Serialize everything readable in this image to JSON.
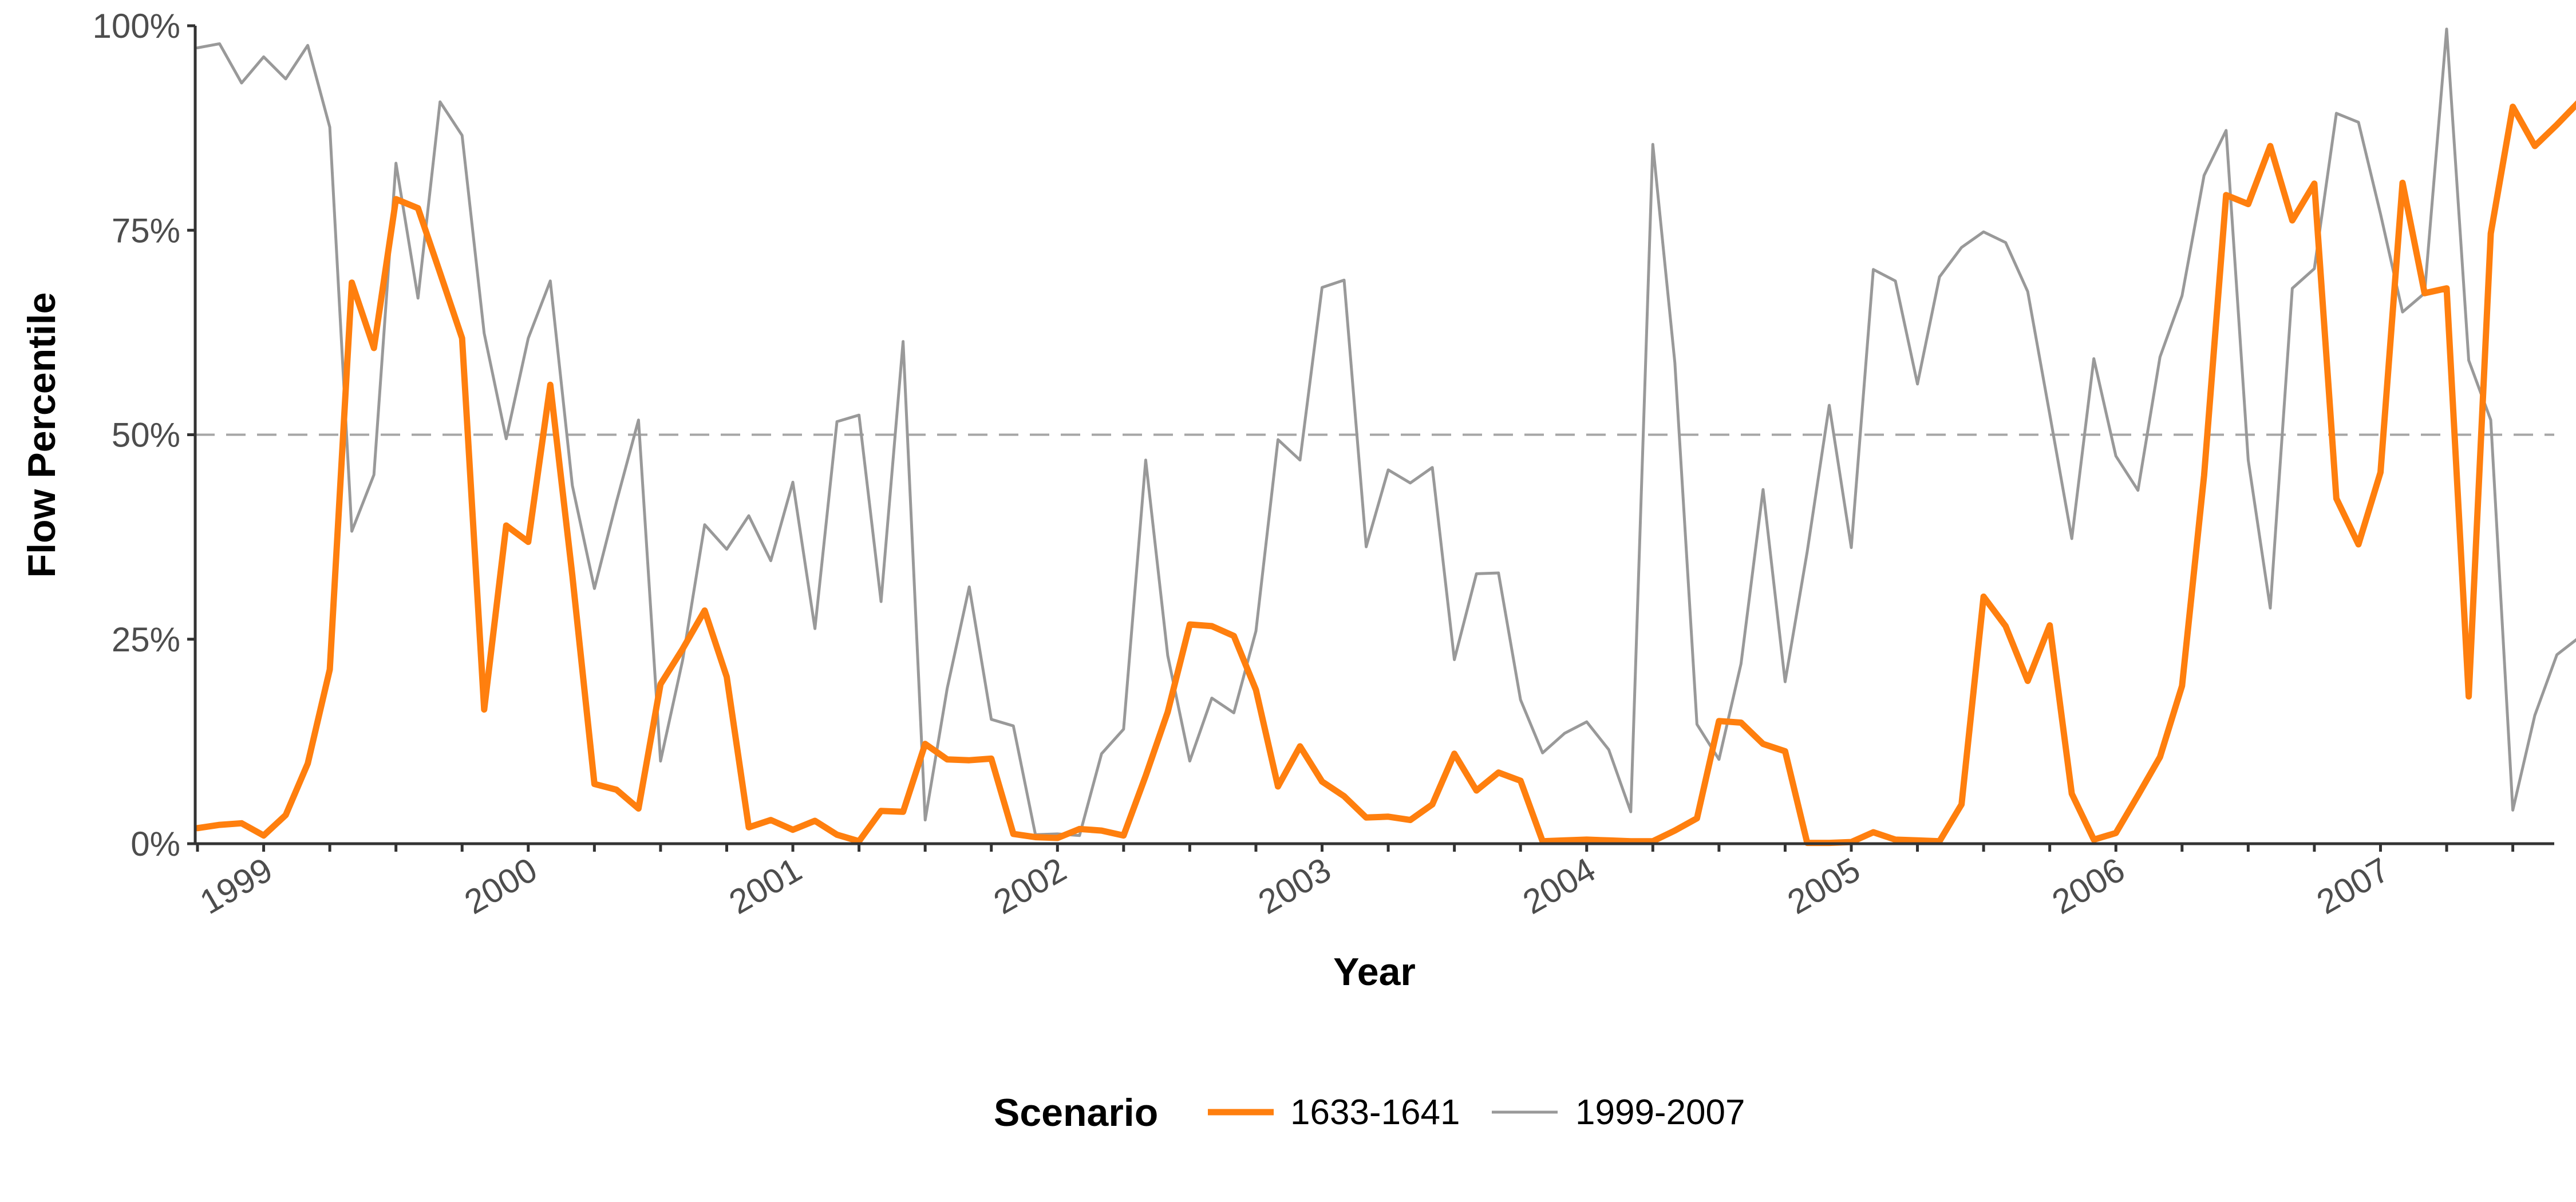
{
  "chart_data": {
    "type": "line",
    "xlabel": "Year",
    "ylabel": "Flow Percentile",
    "x_ticks": [
      "1999",
      "2000",
      "2001",
      "2002",
      "2003",
      "2004",
      "2005",
      "2006",
      "2007"
    ],
    "y_ticks": [
      "0%",
      "25%",
      "50%",
      "75%",
      "100%"
    ],
    "y_tick_values": [
      0,
      25,
      50,
      75,
      100
    ],
    "ylim": [
      0,
      100
    ],
    "xlim": [
      "1998-10",
      "2007-09"
    ],
    "x_start": "1998-10",
    "reference_line": {
      "y": 50,
      "style": "dashed",
      "color": "#a6a6a6"
    },
    "grid": false,
    "legend": {
      "title": "Scenario",
      "position": "bottom"
    },
    "series": [
      {
        "name": "1633-1641",
        "color": "#ff7f0e",
        "values": [
          1.9,
          2.3,
          2.5,
          1.0,
          3.5,
          9.8,
          21.3,
          68.6,
          60.6,
          78.8,
          77.7,
          69.8,
          61.8,
          16.4,
          38.9,
          36.9,
          56.1,
          32.8,
          7.3,
          6.6,
          4.3,
          19.5,
          23.8,
          28.5,
          20.4,
          2.0,
          2.9,
          1.7,
          2.8,
          1.1,
          0.3,
          4.0,
          3.9,
          12.2,
          10.3,
          10.2,
          10.4,
          1.2,
          0.8,
          0.7,
          1.8,
          1.6,
          1.0,
          8.3,
          16.1,
          26.8,
          26.6,
          25.4,
          18.8,
          7.0,
          11.9,
          7.6,
          5.8,
          3.2,
          3.3,
          2.9,
          4.8,
          11.0,
          6.5,
          8.7,
          7.7,
          0.3,
          0.4,
          0.5,
          0.4,
          0.3,
          0.3,
          1.6,
          3.1,
          15.0,
          14.8,
          12.2,
          11.3,
          0.1,
          0.1,
          0.2,
          1.4,
          0.5,
          0.4,
          0.3,
          4.8,
          30.2,
          26.6,
          19.9,
          26.7,
          6.1,
          0.5,
          1.3,
          5.9,
          10.6,
          19.3,
          45.0,
          79.3,
          78.2,
          85.3,
          76.2,
          80.7,
          42.2,
          36.6,
          45.4,
          80.8,
          67.3,
          67.9,
          18.0,
          74.6,
          90.1,
          85.3,
          87.9,
          90.7
        ]
      },
      {
        "name": "1999-2007",
        "color": "#999999",
        "values": [
          97.3,
          97.8,
          93.0,
          96.2,
          93.5,
          97.6,
          87.6,
          38.2,
          45.1,
          83.2,
          66.7,
          90.7,
          86.6,
          62.4,
          49.5,
          61.8,
          68.8,
          43.8,
          31.2,
          41.8,
          51.8,
          10.1,
          22.4,
          39.0,
          36.0,
          40.1,
          34.6,
          44.2,
          26.3,
          51.6,
          52.4,
          29.6,
          61.4,
          2.9,
          19.0,
          31.4,
          15.2,
          14.4,
          1.1,
          1.2,
          1.0,
          11.0,
          14.0,
          46.9,
          23.0,
          10.1,
          17.8,
          16.0,
          26.0,
          49.4,
          46.9,
          68.0,
          68.9,
          36.3,
          45.7,
          44.1,
          46.0,
          22.5,
          33.0,
          33.1,
          17.6,
          11.1,
          13.5,
          14.9,
          11.5,
          3.9,
          85.5,
          58.8,
          14.6,
          10.3,
          22.0,
          43.3,
          19.8,
          35.7,
          53.6,
          36.2,
          70.2,
          68.8,
          56.2,
          69.3,
          72.9,
          74.8,
          73.5,
          67.5,
          52.5,
          37.3,
          59.3,
          47.4,
          43.2,
          59.5,
          67.0,
          81.7,
          87.2,
          46.9,
          28.8,
          67.9,
          70.3,
          89.3,
          88.2,
          77.0,
          65.0,
          67.3,
          99.6,
          59.1,
          51.8,
          4.1,
          15.7,
          23.1,
          25.2
        ]
      }
    ]
  }
}
